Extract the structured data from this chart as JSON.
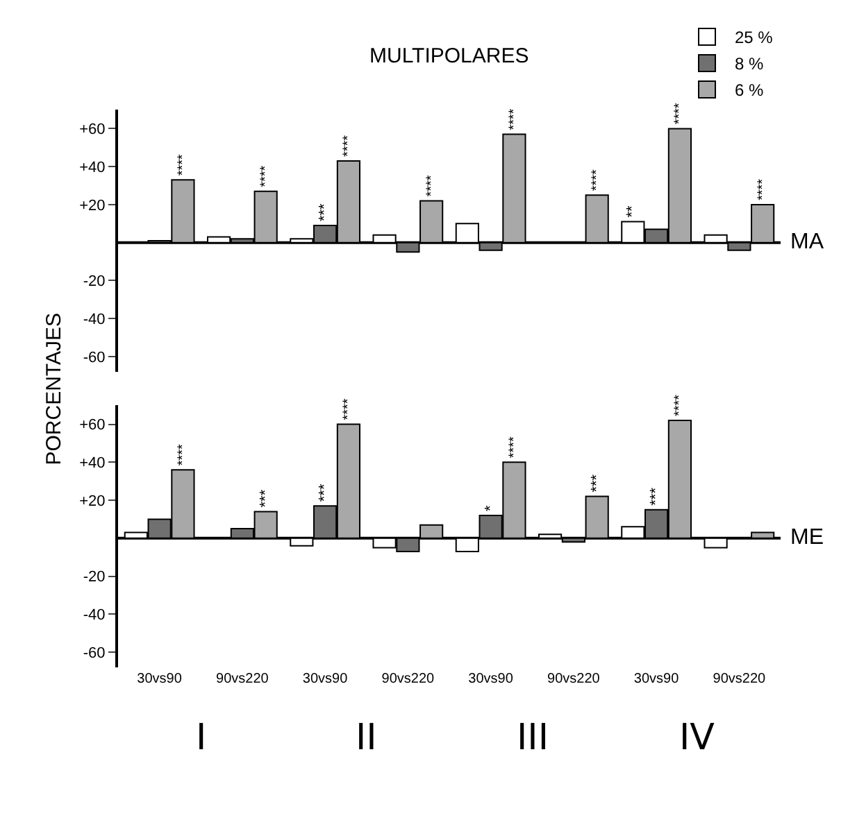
{
  "chart_data": [
    {
      "type": "bar",
      "title": "MULTIPOLARES",
      "ylabel": "PORCENTAJES",
      "categories": [
        "30vs90",
        "90vs220",
        "30vs90",
        "90vs220",
        "30vs90",
        "90vs220",
        "30vs90",
        "90vs220"
      ],
      "series": [
        {
          "name": "25 %",
          "color": "#ffffff",
          "values": [
            null,
            3,
            2,
            4,
            10,
            null,
            11,
            4
          ],
          "value_labels": [
            null,
            null,
            null,
            null,
            null,
            null,
            "**",
            null
          ]
        },
        {
          "name": "8 %",
          "color": "#707070",
          "values": [
            1,
            2,
            9,
            -5,
            -4,
            null,
            7,
            -4
          ],
          "value_labels": [
            null,
            null,
            "***",
            null,
            null,
            null,
            null,
            null
          ]
        },
        {
          "name": "6 %",
          "color": "#a8a8a8",
          "values": [
            33,
            27,
            43,
            22,
            57,
            25,
            60,
            20
          ],
          "value_labels": [
            "****",
            "****",
            "****",
            "****",
            "****",
            "****",
            "****",
            "****"
          ]
        }
      ],
      "ylim": [
        -68,
        70
      ],
      "yticks": [
        {
          "value": 60,
          "label": "+60"
        },
        {
          "value": 40,
          "label": "+40"
        },
        {
          "value": 20,
          "label": "+20"
        },
        -20,
        -40,
        -60
      ],
      "ref_lines": [
        {
          "axis": "y",
          "value": 0,
          "label": "MA"
        }
      ],
      "tick_labels": "y",
      "grid": false,
      "legend": "top right"
    },
    {
      "type": "bar",
      "categories": [
        "30vs90",
        "90vs220",
        "30vs90",
        "90vs220",
        "30vs90",
        "90vs220",
        "30vs90",
        "90vs220"
      ],
      "series": [
        {
          "color": "#ffffff",
          "values": [
            3,
            null,
            -4,
            -5,
            -7,
            2,
            6,
            -5
          ],
          "value_labels": [
            null,
            null,
            null,
            null,
            null,
            null,
            null,
            null
          ]
        },
        {
          "color": "#707070",
          "values": [
            10,
            5,
            17,
            -7,
            12,
            -2,
            15,
            null
          ],
          "value_labels": [
            null,
            null,
            "***",
            null,
            "*",
            null,
            "***",
            null
          ]
        },
        {
          "color": "#a8a8a8",
          "values": [
            36,
            14,
            60,
            7,
            40,
            22,
            62,
            3
          ],
          "value_labels": [
            "****",
            "***",
            "****",
            null,
            "****",
            "***",
            "****",
            null
          ]
        }
      ],
      "ylim": [
        -68,
        70
      ],
      "yticks": [
        {
          "value": 60,
          "label": "+60"
        },
        {
          "value": 40,
          "label": "+40"
        },
        {
          "value": 20,
          "label": "+20"
        },
        -20,
        -40,
        -60
      ],
      "ref_lines": [
        {
          "axis": "y",
          "value": 0,
          "label": "ME"
        }
      ],
      "annotations": [
        "I",
        "II",
        "III",
        "IV"
      ],
      "grid": false,
      "legend": false
    }
  ]
}
